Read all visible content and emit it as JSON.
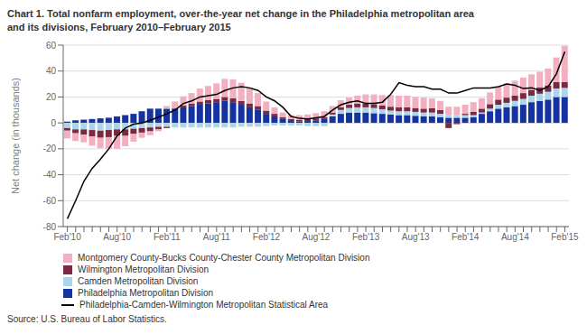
{
  "chart_data": {
    "type": "bar",
    "stacked": true,
    "title": "Chart 1. Total nonfarm employment, over-the-year net change in the Philadelphia metropolitan area\nand its divisions, February 2010–February 2015",
    "y_label": "Net change (in thousands)",
    "source": "Source: U.S. Bureau of Labor Statistics.",
    "ylim": [
      -80,
      60
    ],
    "yticks": [
      -80,
      -60,
      -40,
      -20,
      0,
      20,
      40,
      60
    ],
    "grid": true,
    "legend": "bottom",
    "categories": [
      "Feb'10",
      null,
      null,
      null,
      null,
      null,
      "Aug'10",
      null,
      null,
      null,
      null,
      null,
      "Feb'11",
      null,
      null,
      null,
      null,
      null,
      "Aug'11",
      null,
      null,
      null,
      null,
      null,
      "Feb'12",
      null,
      null,
      null,
      null,
      null,
      "Aug'12",
      null,
      null,
      null,
      null,
      null,
      "Feb'13",
      null,
      null,
      null,
      null,
      null,
      "Aug'13",
      null,
      null,
      null,
      null,
      null,
      "Feb'14",
      null,
      null,
      null,
      null,
      null,
      "Aug'14",
      null,
      null,
      null,
      null,
      null,
      "Feb'15"
    ],
    "series": [
      {
        "name": "Philadelphia Metropolitan Division",
        "type": "bar",
        "color": "#1433a0",
        "values": [
          1.0,
          2.0,
          2.5,
          3.0,
          3.5,
          4.0,
          5.0,
          6.0,
          7.0,
          9.0,
          11.0,
          11.0,
          11.0,
          11.0,
          12.0,
          13.0,
          14.0,
          15.0,
          16.0,
          17.0,
          16.0,
          14.0,
          12.0,
          10.0,
          7.0,
          5.0,
          3.0,
          1.5,
          1.0,
          1.5,
          2.0,
          3.0,
          5.0,
          7.0,
          8.0,
          8.0,
          8.0,
          7.5,
          7.0,
          6.5,
          6.0,
          6.0,
          5.5,
          5.0,
          5.0,
          4.5,
          4.0,
          4.0,
          4.0,
          4.5,
          7.0,
          9.0,
          11.0,
          12.0,
          13.0,
          14.0,
          16.0,
          17.0,
          18.0,
          20.0,
          20.0
        ]
      },
      {
        "name": "Camden Metropolitan Division",
        "type": "bar",
        "color": "#acd5ea",
        "values": [
          -4.0,
          -5.0,
          -5.0,
          -5.5,
          -6.0,
          -5.5,
          -5.0,
          -5.0,
          -4.5,
          -4.0,
          -3.5,
          -3.0,
          -3.0,
          -3.5,
          -3.5,
          -3.5,
          -3.5,
          -3.5,
          -3.5,
          -3.5,
          -3.5,
          -3.0,
          -3.0,
          -3.0,
          -2.5,
          -2.0,
          -2.0,
          -2.0,
          -2.0,
          -2.5,
          -2.5,
          -2.5,
          1.5,
          3.0,
          3.5,
          4.0,
          4.0,
          4.0,
          3.5,
          3.0,
          3.0,
          3.0,
          3.0,
          3.0,
          3.0,
          2.5,
          2.0,
          2.0,
          2.0,
          1.5,
          1.0,
          2.0,
          3.0,
          3.5,
          4.0,
          4.5,
          5.0,
          5.5,
          6.0,
          6.5,
          7.0
        ]
      },
      {
        "name": "Wilmington Metropolitan Division",
        "type": "bar",
        "color": "#7b2942",
        "values": [
          -2.0,
          -3.0,
          -4.0,
          -5.0,
          -5.5,
          -5.5,
          -5.0,
          -5.0,
          -4.0,
          -3.5,
          -3.0,
          -2.0,
          -1.0,
          0.5,
          1.5,
          2.0,
          2.5,
          2.5,
          2.5,
          3.0,
          3.0,
          3.0,
          3.0,
          3.0,
          2.5,
          2.0,
          1.5,
          1.5,
          1.5,
          1.5,
          1.5,
          1.5,
          1.5,
          2.0,
          2.5,
          3.0,
          3.0,
          3.0,
          3.0,
          3.0,
          3.0,
          3.0,
          3.0,
          3.0,
          3.5,
          3.0,
          -4.0,
          -1.0,
          1.0,
          2.5,
          3.0,
          3.5,
          4.0,
          4.0,
          4.0,
          4.5,
          4.5,
          5.0,
          5.0,
          5.0,
          4.5
        ]
      },
      {
        "name": "Montgomery County-Bucks County-Chester County Metropolitan Division",
        "type": "bar",
        "color": "#f2afc0",
        "values": [
          -6.0,
          -6.0,
          -6.0,
          -7.0,
          -8.0,
          -9.0,
          -10.0,
          -8.0,
          -6.0,
          -4.0,
          -3.0,
          -1.5,
          2.0,
          5.0,
          7.0,
          8.0,
          10.0,
          11.0,
          12.0,
          14.0,
          14.5,
          14.0,
          12.0,
          10.0,
          7.0,
          5.0,
          3.5,
          3.0,
          3.5,
          3.5,
          4.0,
          4.5,
          5.0,
          5.5,
          5.5,
          6.0,
          7.0,
          7.5,
          8.0,
          9.0,
          9.0,
          9.0,
          8.5,
          8.5,
          7.5,
          7.0,
          6.5,
          6.5,
          7.0,
          7.5,
          8.0,
          9.0,
          10.0,
          11.0,
          11.5,
          12.0,
          12.0,
          12.0,
          13.0,
          19.0,
          28.0
        ]
      },
      {
        "name": "Philadelphia-Camden-Wilmington Metropolitan Statistical Area",
        "type": "line",
        "color": "#000000",
        "values": [
          -74.0,
          -60.0,
          -45.0,
          -35.0,
          -28.0,
          -20.0,
          -10.0,
          -4.0,
          -1.0,
          0.0,
          2.0,
          4.5,
          7.0,
          10.0,
          15.0,
          17.0,
          20.0,
          21.0,
          22.0,
          25.0,
          27.0,
          28.0,
          27.0,
          25.0,
          20.0,
          17.0,
          12.0,
          5.0,
          3.5,
          3.0,
          4.0,
          5.0,
          10.0,
          14.0,
          16.0,
          17.0,
          15.0,
          15.0,
          16.0,
          22.0,
          31.0,
          29.0,
          28.0,
          28.0,
          26.0,
          26.0,
          23.0,
          23.0,
          25.0,
          27.0,
          27.0,
          27.0,
          28.0,
          30.0,
          29.0,
          26.5,
          27.0,
          25.0,
          28.0,
          38.0,
          55.0
        ]
      }
    ]
  }
}
